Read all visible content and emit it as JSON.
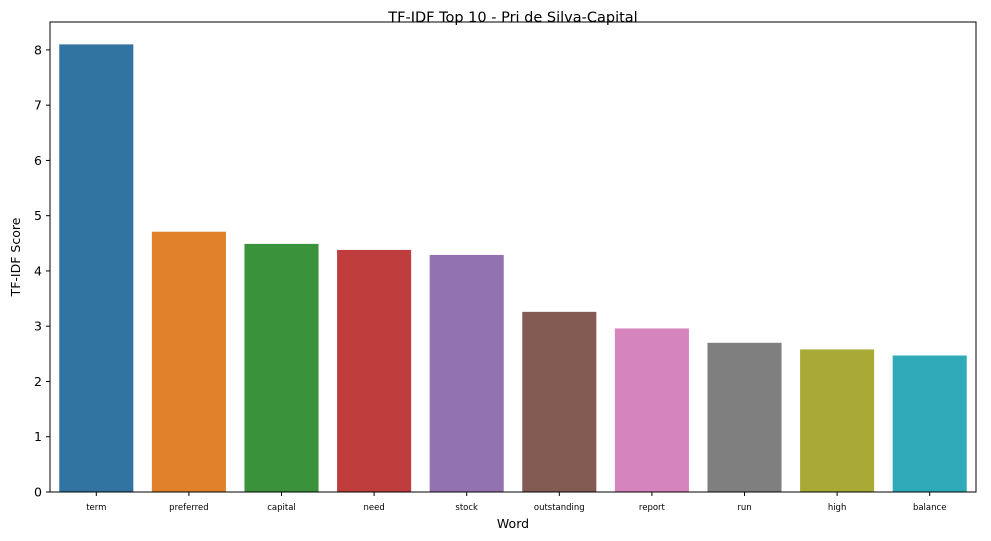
{
  "chart_data": {
    "type": "bar",
    "title": "TF-IDF Top 10 - Pri de Silva-Capital",
    "xlabel": "Word",
    "ylabel": "TF-IDF Score",
    "categories": [
      "term",
      "preferred",
      "capital",
      "need",
      "stock",
      "outstanding",
      "report",
      "run",
      "high",
      "balance"
    ],
    "values": [
      8.1,
      4.71,
      4.49,
      4.38,
      4.29,
      3.26,
      2.96,
      2.7,
      2.58,
      2.47
    ],
    "colors": [
      "#3274a1",
      "#e1812c",
      "#3a923a",
      "#c03d3e",
      "#9372b2",
      "#845b53",
      "#d684bd",
      "#7f7f7f",
      "#a9aa35",
      "#2eaab8"
    ],
    "ylim": [
      0,
      8.505
    ],
    "yticks": [
      "0",
      "1",
      "2",
      "3",
      "4",
      "5",
      "6",
      "7",
      "8"
    ],
    "grid": false,
    "legend": "none"
  }
}
